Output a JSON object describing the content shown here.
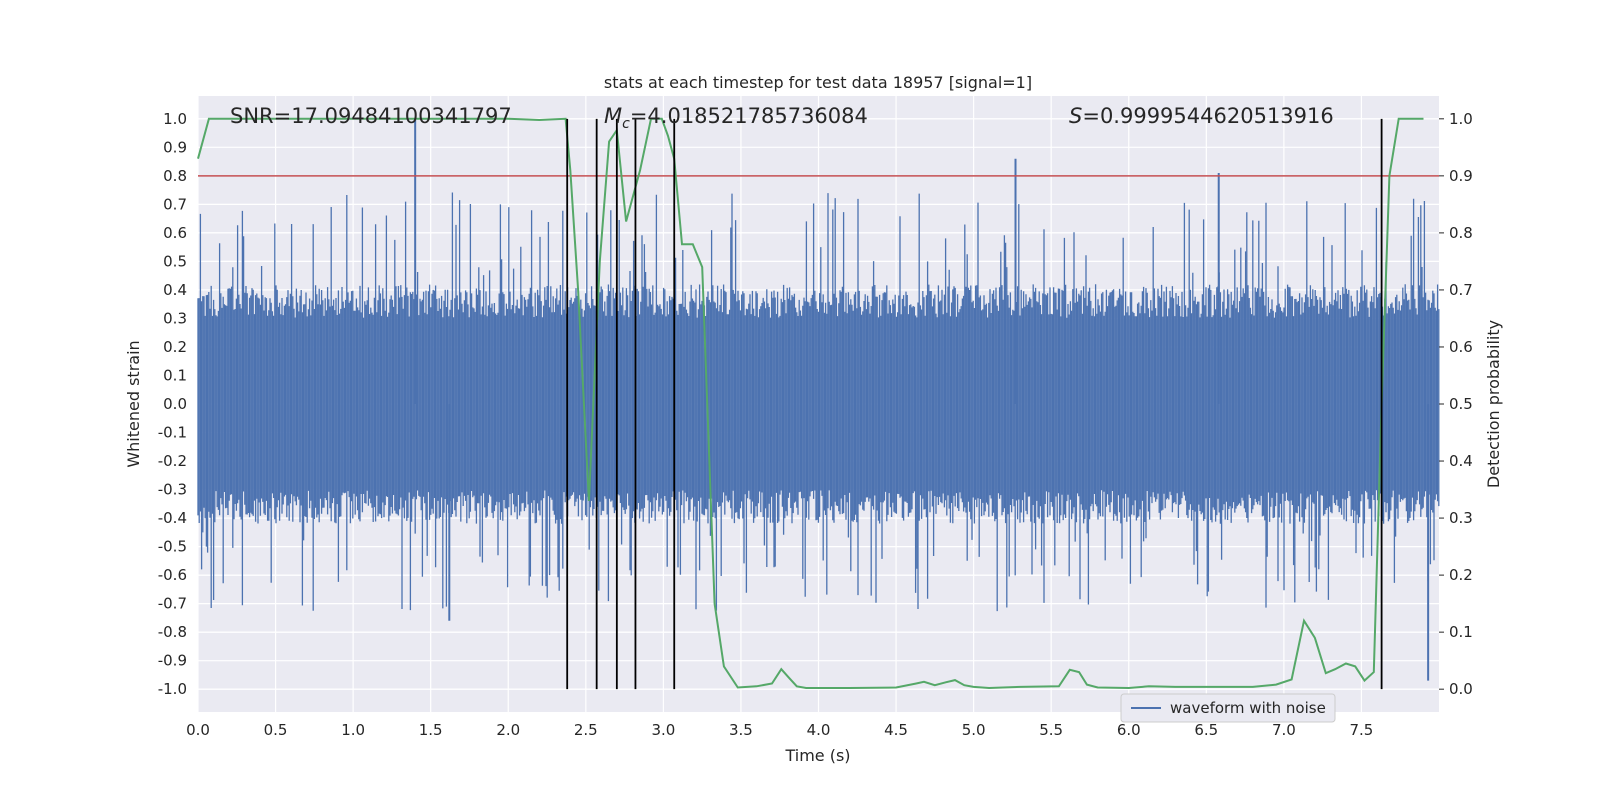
{
  "chart_data": {
    "type": "line",
    "title": "stats at each timestep for test data 18957 [signal=1]",
    "xlabel": "Time (s)",
    "ylabel": "Whitened strain",
    "ylabel_right": "Detection probability",
    "xlim": [
      0.0,
      8.0
    ],
    "ylim": [
      -1.08,
      1.08
    ],
    "ylim_right": [
      -0.04,
      1.04
    ],
    "x_ticks": [
      "0.0",
      "0.5",
      "1.0",
      "1.5",
      "2.0",
      "2.5",
      "3.0",
      "3.5",
      "4.0",
      "4.5",
      "5.0",
      "5.5",
      "6.0",
      "6.5",
      "7.0",
      "7.5"
    ],
    "y_ticks": [
      "1.0",
      "0.9",
      "0.8",
      "0.7",
      "0.6",
      "0.5",
      "0.4",
      "0.3",
      "0.2",
      "0.1",
      "0.0",
      "-0.1",
      "-0.2",
      "-0.3",
      "-0.4",
      "-0.5",
      "-0.6",
      "-0.7",
      "-0.8",
      "-0.9",
      "-1.0"
    ],
    "y_ticks_right": [
      "1.0",
      "0.9",
      "0.8",
      "0.7",
      "0.6",
      "0.5",
      "0.4",
      "0.3",
      "0.2",
      "0.1",
      "0.0"
    ],
    "grid": true,
    "legend_position": "bottom-right",
    "annotations": {
      "snr": "SNR=17.09484100341797",
      "mc_symbol": "M",
      "mc_subscript": "c",
      "mc_value": "=4.018521785736084",
      "s_symbol": "S",
      "s_value": "=0.9999544620513916"
    },
    "threshold": {
      "value": 0.8,
      "color": "#c44e52"
    },
    "event_markers": [
      2.38,
      2.57,
      2.7,
      2.82,
      3.07,
      7.63
    ],
    "waveform_spikes": [
      {
        "x": 1.4,
        "y": 1.0
      },
      {
        "x": 5.27,
        "y": 0.86
      },
      {
        "x": 6.58,
        "y": 0.81
      },
      {
        "x": 7.93,
        "y": -0.97
      },
      {
        "x": 1.62,
        "y": -0.76
      }
    ],
    "series": [
      {
        "name": "waveform with noise",
        "axis": "left",
        "color": "#4c72b0",
        "style": "noise",
        "envelope": 0.42,
        "x_range": [
          0.0,
          8.0
        ]
      },
      {
        "axis": "right",
        "color": "#55a868",
        "x": [
          0.0,
          0.07,
          0.2,
          1.0,
          2.0,
          2.2,
          2.37,
          2.4,
          2.45,
          2.52,
          2.59,
          2.65,
          2.7,
          2.76,
          2.85,
          2.92,
          2.99,
          3.03,
          3.07,
          3.12,
          3.19,
          3.25,
          3.33,
          3.39,
          3.48,
          3.6,
          3.7,
          3.76,
          3.81,
          3.86,
          3.92,
          4.0,
          4.2,
          4.5,
          4.63,
          4.68,
          4.75,
          4.82,
          4.88,
          4.94,
          5.0,
          5.1,
          5.3,
          5.55,
          5.62,
          5.68,
          5.73,
          5.8,
          6.0,
          6.13,
          6.3,
          6.8,
          6.95,
          7.05,
          7.13,
          7.2,
          7.27,
          7.33,
          7.4,
          7.46,
          7.52,
          7.58,
          7.63,
          7.68,
          7.74,
          7.8,
          7.9
        ],
        "values": [
          0.93,
          1.0,
          1.0,
          1.0,
          1.0,
          0.998,
          1.0,
          0.91,
          0.7,
          0.33,
          0.75,
          0.96,
          0.98,
          0.82,
          0.91,
          1.0,
          1.0,
          0.97,
          0.93,
          0.78,
          0.78,
          0.74,
          0.15,
          0.04,
          0.003,
          0.005,
          0.01,
          0.035,
          0.02,
          0.005,
          0.002,
          0.002,
          0.002,
          0.003,
          0.01,
          0.013,
          0.007,
          0.012,
          0.016,
          0.007,
          0.004,
          0.002,
          0.004,
          0.005,
          0.034,
          0.03,
          0.008,
          0.003,
          0.002,
          0.005,
          0.004,
          0.004,
          0.008,
          0.017,
          0.12,
          0.09,
          0.028,
          0.035,
          0.045,
          0.04,
          0.015,
          0.03,
          0.5,
          0.9,
          1.0,
          1.0,
          1.0
        ]
      }
    ]
  }
}
